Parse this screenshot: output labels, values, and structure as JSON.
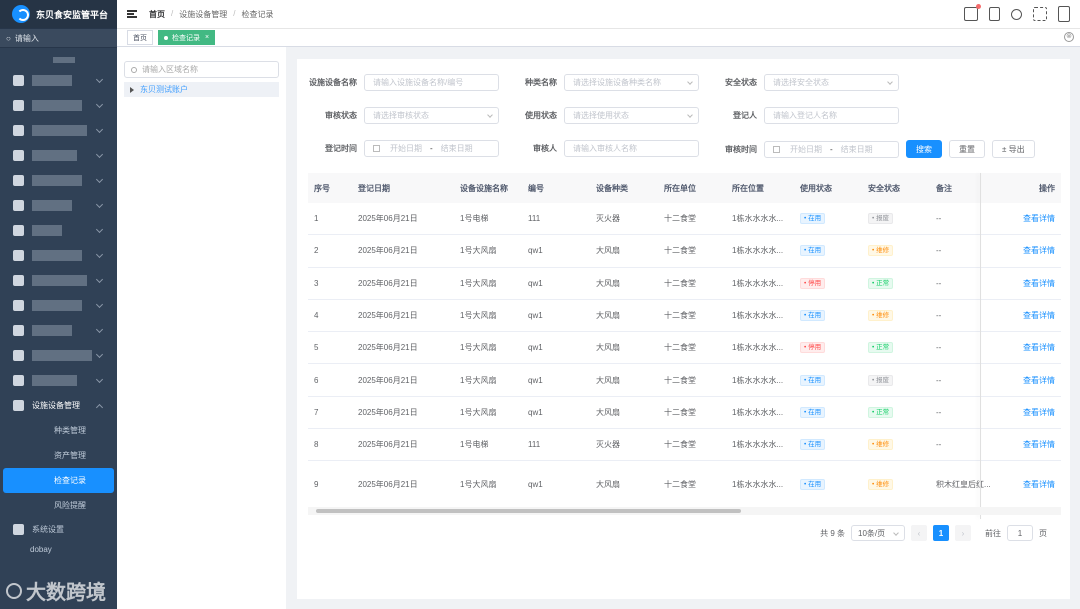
{
  "app": {
    "title": "东贝食安监管平台",
    "search_placeholder": "请输入"
  },
  "sidebar": {
    "menu_group": "设施设备管理",
    "items": [
      "种类管理",
      "资产管理",
      "检查记录",
      "风险提醒"
    ],
    "active": "检查记录",
    "bottom_items": [
      "系统设置",
      "dobay"
    ]
  },
  "watermark": "大数跨境",
  "breadcrumb": [
    "首页",
    "设施设备管理",
    "检查记录"
  ],
  "tags": {
    "home": "首页",
    "current": "检查记录",
    "close": "×"
  },
  "tree": {
    "placeholder": "请输入区域名称",
    "node": "东贝测试账户"
  },
  "filters": {
    "device_name": {
      "label": "设施设备名称",
      "placeholder": "请输入设施设备名称/编号"
    },
    "type_name": {
      "label": "种类名称",
      "placeholder": "请选择设施设备种类名称"
    },
    "safety_status": {
      "label": "安全状态",
      "placeholder": "请选择安全状态"
    },
    "audit_status": {
      "label": "审核状态",
      "placeholder": "请选择审核状态"
    },
    "use_status": {
      "label": "使用状态",
      "placeholder": "请选择使用状态"
    },
    "registrant": {
      "label": "登记人",
      "placeholder": "请输入登记人名称"
    },
    "reg_time": {
      "label": "登记时间",
      "start": "开始日期",
      "sep": "-",
      "end": "结束日期"
    },
    "auditor": {
      "label": "审核人",
      "placeholder": "请输入审核人名称"
    },
    "audit_time": {
      "label": "审核时间",
      "start": "开始日期",
      "sep": "-",
      "end": "结束日期"
    },
    "search_btn": "搜索",
    "reset_btn": "重置",
    "export_btn": "± 导出"
  },
  "table": {
    "columns": [
      "序号",
      "登记日期",
      "设备设施名称",
      "编号",
      "设备种类",
      "所在单位",
      "所在位置",
      "使用状态",
      "安全状态",
      "备注",
      "操作"
    ],
    "rows": [
      {
        "idx": "1",
        "date": "2025年06月21日",
        "name": "1号电梯",
        "code": "111",
        "type": "灭火器",
        "unit": "十二食堂",
        "loc": "1栋水水水水...",
        "use": "在用",
        "safe": "报废",
        "note": "--",
        "op": "查看详情"
      },
      {
        "idx": "2",
        "date": "2025年06月21日",
        "name": "1号大风扇",
        "code": "qw1",
        "type": "大风扇",
        "unit": "十二食堂",
        "loc": "1栋水水水水...",
        "use": "在用",
        "safe": "维修",
        "note": "--",
        "op": "查看详情"
      },
      {
        "idx": "3",
        "date": "2025年06月21日",
        "name": "1号大风扇",
        "code": "qw1",
        "type": "大风扇",
        "unit": "十二食堂",
        "loc": "1栋水水水水...",
        "use": "停用",
        "safe": "正常",
        "note": "--",
        "op": "查看详情"
      },
      {
        "idx": "4",
        "date": "2025年06月21日",
        "name": "1号大风扇",
        "code": "qw1",
        "type": "大风扇",
        "unit": "十二食堂",
        "loc": "1栋水水水水...",
        "use": "在用",
        "safe": "维修",
        "note": "--",
        "op": "查看详情"
      },
      {
        "idx": "5",
        "date": "2025年06月21日",
        "name": "1号大风扇",
        "code": "qw1",
        "type": "大风扇",
        "unit": "十二食堂",
        "loc": "1栋水水水水...",
        "use": "停用",
        "safe": "正常",
        "note": "--",
        "op": "查看详情"
      },
      {
        "idx": "6",
        "date": "2025年06月21日",
        "name": "1号大风扇",
        "code": "qw1",
        "type": "大风扇",
        "unit": "十二食堂",
        "loc": "1栋水水水水...",
        "use": "在用",
        "safe": "报废",
        "note": "--",
        "op": "查看详情"
      },
      {
        "idx": "7",
        "date": "2025年06月21日",
        "name": "1号大风扇",
        "code": "qw1",
        "type": "大风扇",
        "unit": "十二食堂",
        "loc": "1栋水水水水...",
        "use": "在用",
        "safe": "正常",
        "note": "--",
        "op": "查看详情"
      },
      {
        "idx": "8",
        "date": "2025年06月21日",
        "name": "1号电梯",
        "code": "111",
        "type": "灭火器",
        "unit": "十二食堂",
        "loc": "1栋水水水水...",
        "use": "在用",
        "safe": "维修",
        "note": "--",
        "op": "查看详情"
      },
      {
        "idx": "9",
        "date": "2025年06月21日",
        "name": "1号大风扇",
        "code": "qw1",
        "type": "大风扇",
        "unit": "十二食堂",
        "loc": "1栋水水水水...",
        "use": "在用",
        "safe": "维修",
        "note": "积木红皇后红...",
        "op": "查看详情"
      }
    ]
  },
  "pagination": {
    "total": "共 9 条",
    "page_size": "10条/页",
    "current": "1",
    "goto_label": "前往",
    "goto_value": "1",
    "page_suffix": "页",
    "prev": "‹",
    "next": "›"
  },
  "colors": {
    "sidebar": "#304156",
    "primary": "#1890ff",
    "active_tag": "#42b983"
  }
}
